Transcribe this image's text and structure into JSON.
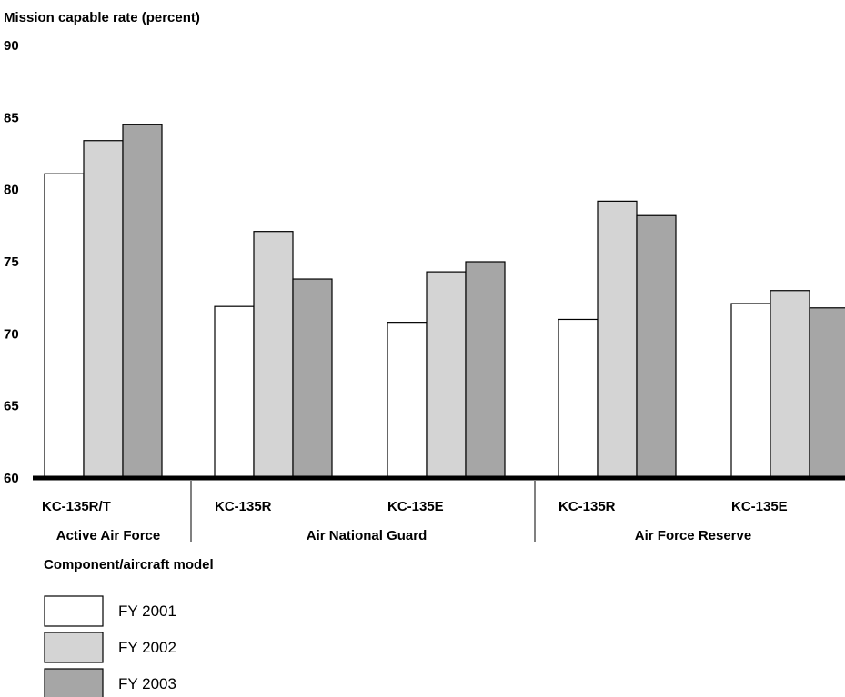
{
  "chart_data": {
    "type": "bar",
    "ylabel": "Mission capable rate (percent)",
    "xlabel": "Component/aircraft model",
    "ylim": [
      60,
      90
    ],
    "yticks": [
      60,
      65,
      70,
      75,
      80,
      85,
      90
    ],
    "categories": [
      "KC-135R/T",
      "KC-135R",
      "KC-135E",
      "KC-135R",
      "KC-135E"
    ],
    "groups": [
      {
        "label": "Active Air Force",
        "categories": [
          0
        ]
      },
      {
        "label": "Air National Guard",
        "categories": [
          1,
          2
        ]
      },
      {
        "label": "Air Force Reserve",
        "categories": [
          3,
          4
        ]
      }
    ],
    "series": [
      {
        "name": "FY 2001",
        "color": "#ffffff",
        "values": [
          81.1,
          71.9,
          70.8,
          71.0,
          72.1
        ]
      },
      {
        "name": "FY 2002",
        "color": "#d4d4d4",
        "values": [
          83.4,
          77.1,
          74.3,
          79.2,
          73.0
        ]
      },
      {
        "name": "FY 2003",
        "color": "#a6a6a6",
        "values": [
          84.5,
          73.8,
          75.0,
          78.2,
          71.8
        ]
      }
    ],
    "grid": false,
    "legend": "bottom-left"
  }
}
